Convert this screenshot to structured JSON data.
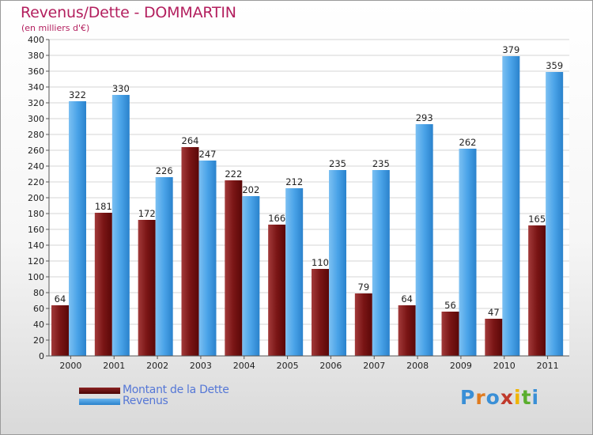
{
  "chart_data": {
    "type": "bar",
    "title": "Revenus/Dette - DOMMARTIN",
    "subtitle": "(en milliers d'€)",
    "categories": [
      "2000",
      "2001",
      "2002",
      "2003",
      "2004",
      "2005",
      "2006",
      "2007",
      "2008",
      "2009",
      "2010",
      "2011"
    ],
    "series": [
      {
        "name": "Montant de la Dette",
        "values": [
          64,
          181,
          172,
          264,
          222,
          166,
          110,
          79,
          64,
          56,
          47,
          165
        ],
        "color": "#7a1515"
      },
      {
        "name": "Revenus",
        "values": [
          322,
          330,
          226,
          247,
          202,
          212,
          235,
          235,
          293,
          262,
          379,
          359
        ],
        "color": "#4aa3e8"
      }
    ],
    "ylim": [
      0,
      400
    ],
    "ytick_step": 20,
    "grid": true,
    "legend_position": "bottom-left"
  },
  "logo": {
    "text": "Proxiti",
    "colors": [
      "#3a8fd6",
      "#e07b1f",
      "#3a8fd6",
      "#c0392b",
      "#f0b400",
      "#5aae2e",
      "#3a8fd6"
    ]
  }
}
